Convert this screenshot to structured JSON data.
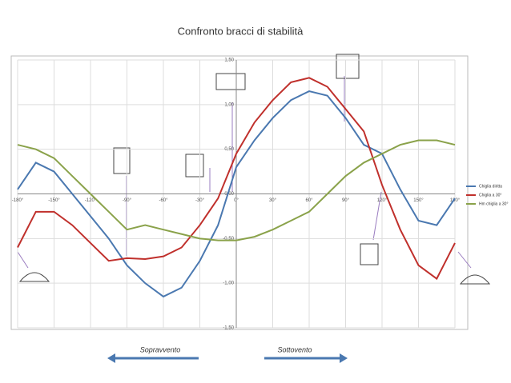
{
  "chart_data": {
    "type": "line",
    "title": "Confronto bracci di stabilità",
    "x": [
      -180,
      -165,
      -150,
      -135,
      -120,
      -105,
      -90,
      -75,
      -60,
      -45,
      -30,
      -15,
      0,
      15,
      30,
      45,
      60,
      75,
      90,
      105,
      120,
      135,
      150,
      165,
      180
    ],
    "series": [
      {
        "name": "Chiglia diritta",
        "color": "#4a78b0",
        "values": [
          0.05,
          0.35,
          0.25,
          0.0,
          -0.25,
          -0.5,
          -0.8,
          -1.0,
          -1.15,
          -1.05,
          -0.75,
          -0.35,
          0.3,
          0.6,
          0.85,
          1.05,
          1.15,
          1.1,
          0.85,
          0.55,
          0.45,
          0.05,
          -0.3,
          -0.35,
          -0.05
        ]
      },
      {
        "name": "Chiglia a 30°",
        "color": "#c0302c",
        "values": [
          -0.6,
          -0.2,
          -0.2,
          -0.35,
          -0.55,
          -0.75,
          -0.72,
          -0.73,
          -0.7,
          -0.6,
          -0.35,
          -0.05,
          0.45,
          0.8,
          1.05,
          1.25,
          1.3,
          1.2,
          0.95,
          0.7,
          0.1,
          -0.4,
          -0.8,
          -0.95,
          -0.55
        ]
      },
      {
        "name": "Hm chiglia a 30°",
        "color": "#8aa24a",
        "values": [
          0.55,
          0.5,
          0.4,
          0.2,
          0.0,
          -0.2,
          -0.4,
          -0.35,
          -0.4,
          -0.45,
          -0.5,
          -0.52,
          -0.52,
          -0.48,
          -0.4,
          -0.3,
          -0.2,
          0.0,
          0.2,
          0.35,
          0.45,
          0.55,
          0.6,
          0.6,
          0.55
        ]
      }
    ],
    "xlim": [
      -180,
      180
    ],
    "xticks": [
      {
        "value": -180,
        "label": "-180°"
      },
      {
        "value": -150,
        "label": "-150°"
      },
      {
        "value": -120,
        "label": "-120°"
      },
      {
        "value": -90,
        "label": "-90°"
      },
      {
        "value": -60,
        "label": "-60°"
      },
      {
        "value": -30,
        "label": "-30°"
      },
      {
        "value": 0,
        "label": "0°"
      },
      {
        "value": 30,
        "label": "30°"
      },
      {
        "value": 60,
        "label": "60°"
      },
      {
        "value": 90,
        "label": "90°"
      },
      {
        "value": 120,
        "label": "120°"
      },
      {
        "value": 150,
        "label": "150°"
      },
      {
        "value": 180,
        "label": "180°"
      }
    ],
    "ylim": [
      -1.5,
      1.5
    ],
    "yticks": [
      {
        "value": -1.5,
        "label": "-1,50"
      },
      {
        "value": -1,
        "label": "-1,00"
      },
      {
        "value": -0.5,
        "label": "-0,50"
      },
      {
        "value": 0,
        "label": "0,00"
      },
      {
        "value": 0.5,
        "label": "0,50"
      },
      {
        "value": 1,
        "label": "1,00"
      },
      {
        "value": 1.5,
        "label": "1,50"
      }
    ],
    "grid": true,
    "legend": "right",
    "annotations": [
      "Sopravvento",
      "Sottovento"
    ]
  }
}
